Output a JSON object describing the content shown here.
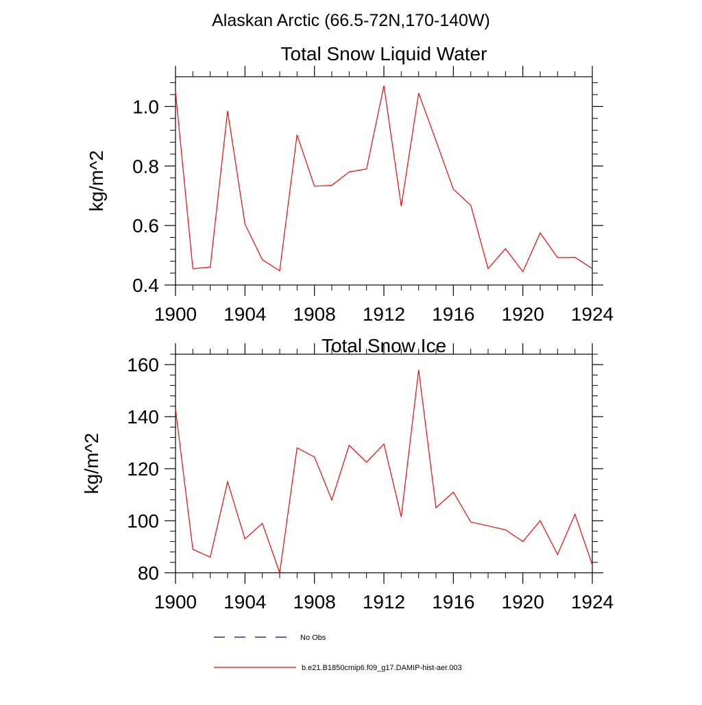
{
  "figure": {
    "title": "Alaskan Arctic (66.5-72N,170-140W)"
  },
  "chart_data": [
    {
      "type": "line",
      "title": "Total Snow Liquid Water",
      "xlabel": "",
      "ylabel": "kg/m^2",
      "xlim": [
        1900,
        1924
      ],
      "ylim": [
        0.4,
        1.1
      ],
      "xticks": [
        1900,
        1904,
        1908,
        1912,
        1916,
        1920,
        1924
      ],
      "xtick_labels": [
        "1900",
        "1904",
        "1908",
        "1912",
        "1916",
        "1920",
        "1924"
      ],
      "yticks": [
        0.4,
        0.6,
        0.8,
        1.0
      ],
      "ytick_labels": [
        "0.4",
        "0.6",
        "0.8",
        "1.0"
      ],
      "grid": false,
      "series": [
        {
          "name": "b.e21.B1850cmip6.f09_g17.DAMIP-hist-aer.003",
          "color": "#ff0000",
          "x": [
            1900,
            1901,
            1902,
            1903,
            1904,
            1905,
            1906,
            1907,
            1908,
            1909,
            1910,
            1911,
            1912,
            1913,
            1914,
            1915,
            1916,
            1917,
            1918,
            1919,
            1920,
            1921,
            1922,
            1923,
            1924
          ],
          "values": [
            1.05,
            0.455,
            0.46,
            0.985,
            0.605,
            0.485,
            0.448,
            0.905,
            0.732,
            0.735,
            0.78,
            0.79,
            1.07,
            0.665,
            1.045,
            0.885,
            0.722,
            0.668,
            0.455,
            0.522,
            0.445,
            0.575,
            0.492,
            0.493,
            0.455
          ]
        }
      ]
    },
    {
      "type": "line",
      "title": "Total Snow Ice",
      "xlabel": "",
      "ylabel": "kg/m^2",
      "xlim": [
        1900,
        1924
      ],
      "ylim": [
        80,
        164
      ],
      "xticks": [
        1900,
        1904,
        1908,
        1912,
        1916,
        1920,
        1924
      ],
      "xtick_labels": [
        "1900",
        "1904",
        "1908",
        "1912",
        "1916",
        "1920",
        "1924"
      ],
      "yticks": [
        80,
        100,
        120,
        140,
        160
      ],
      "ytick_labels": [
        "80",
        "100",
        "120",
        "140",
        "160"
      ],
      "grid": false,
      "series": [
        {
          "name": "b.e21.B1850cmip6.f09_g17.DAMIP-hist-aer.003",
          "color": "#ff0000",
          "x": [
            1900,
            1901,
            1902,
            1903,
            1904,
            1905,
            1906,
            1907,
            1908,
            1909,
            1910,
            1911,
            1912,
            1913,
            1914,
            1915,
            1916,
            1917,
            1918,
            1919,
            1920,
            1921,
            1922,
            1923,
            1924
          ],
          "values": [
            143,
            89,
            86,
            115,
            93,
            99,
            80,
            128,
            124.5,
            108,
            129,
            122.5,
            129.5,
            101.5,
            158,
            105,
            111,
            99.5,
            98,
            96.5,
            92,
            100,
            87,
            102.5,
            83
          ]
        }
      ]
    }
  ],
  "legend": {
    "placement": "bottom-center",
    "items": [
      {
        "label": "No Obs",
        "style": "dashed",
        "color": "#000080"
      },
      {
        "label": "b.e21.B1850cmip6.f09_g17.DAMIP-hist-aer.003",
        "style": "solid",
        "color": "#ff0000"
      }
    ]
  }
}
